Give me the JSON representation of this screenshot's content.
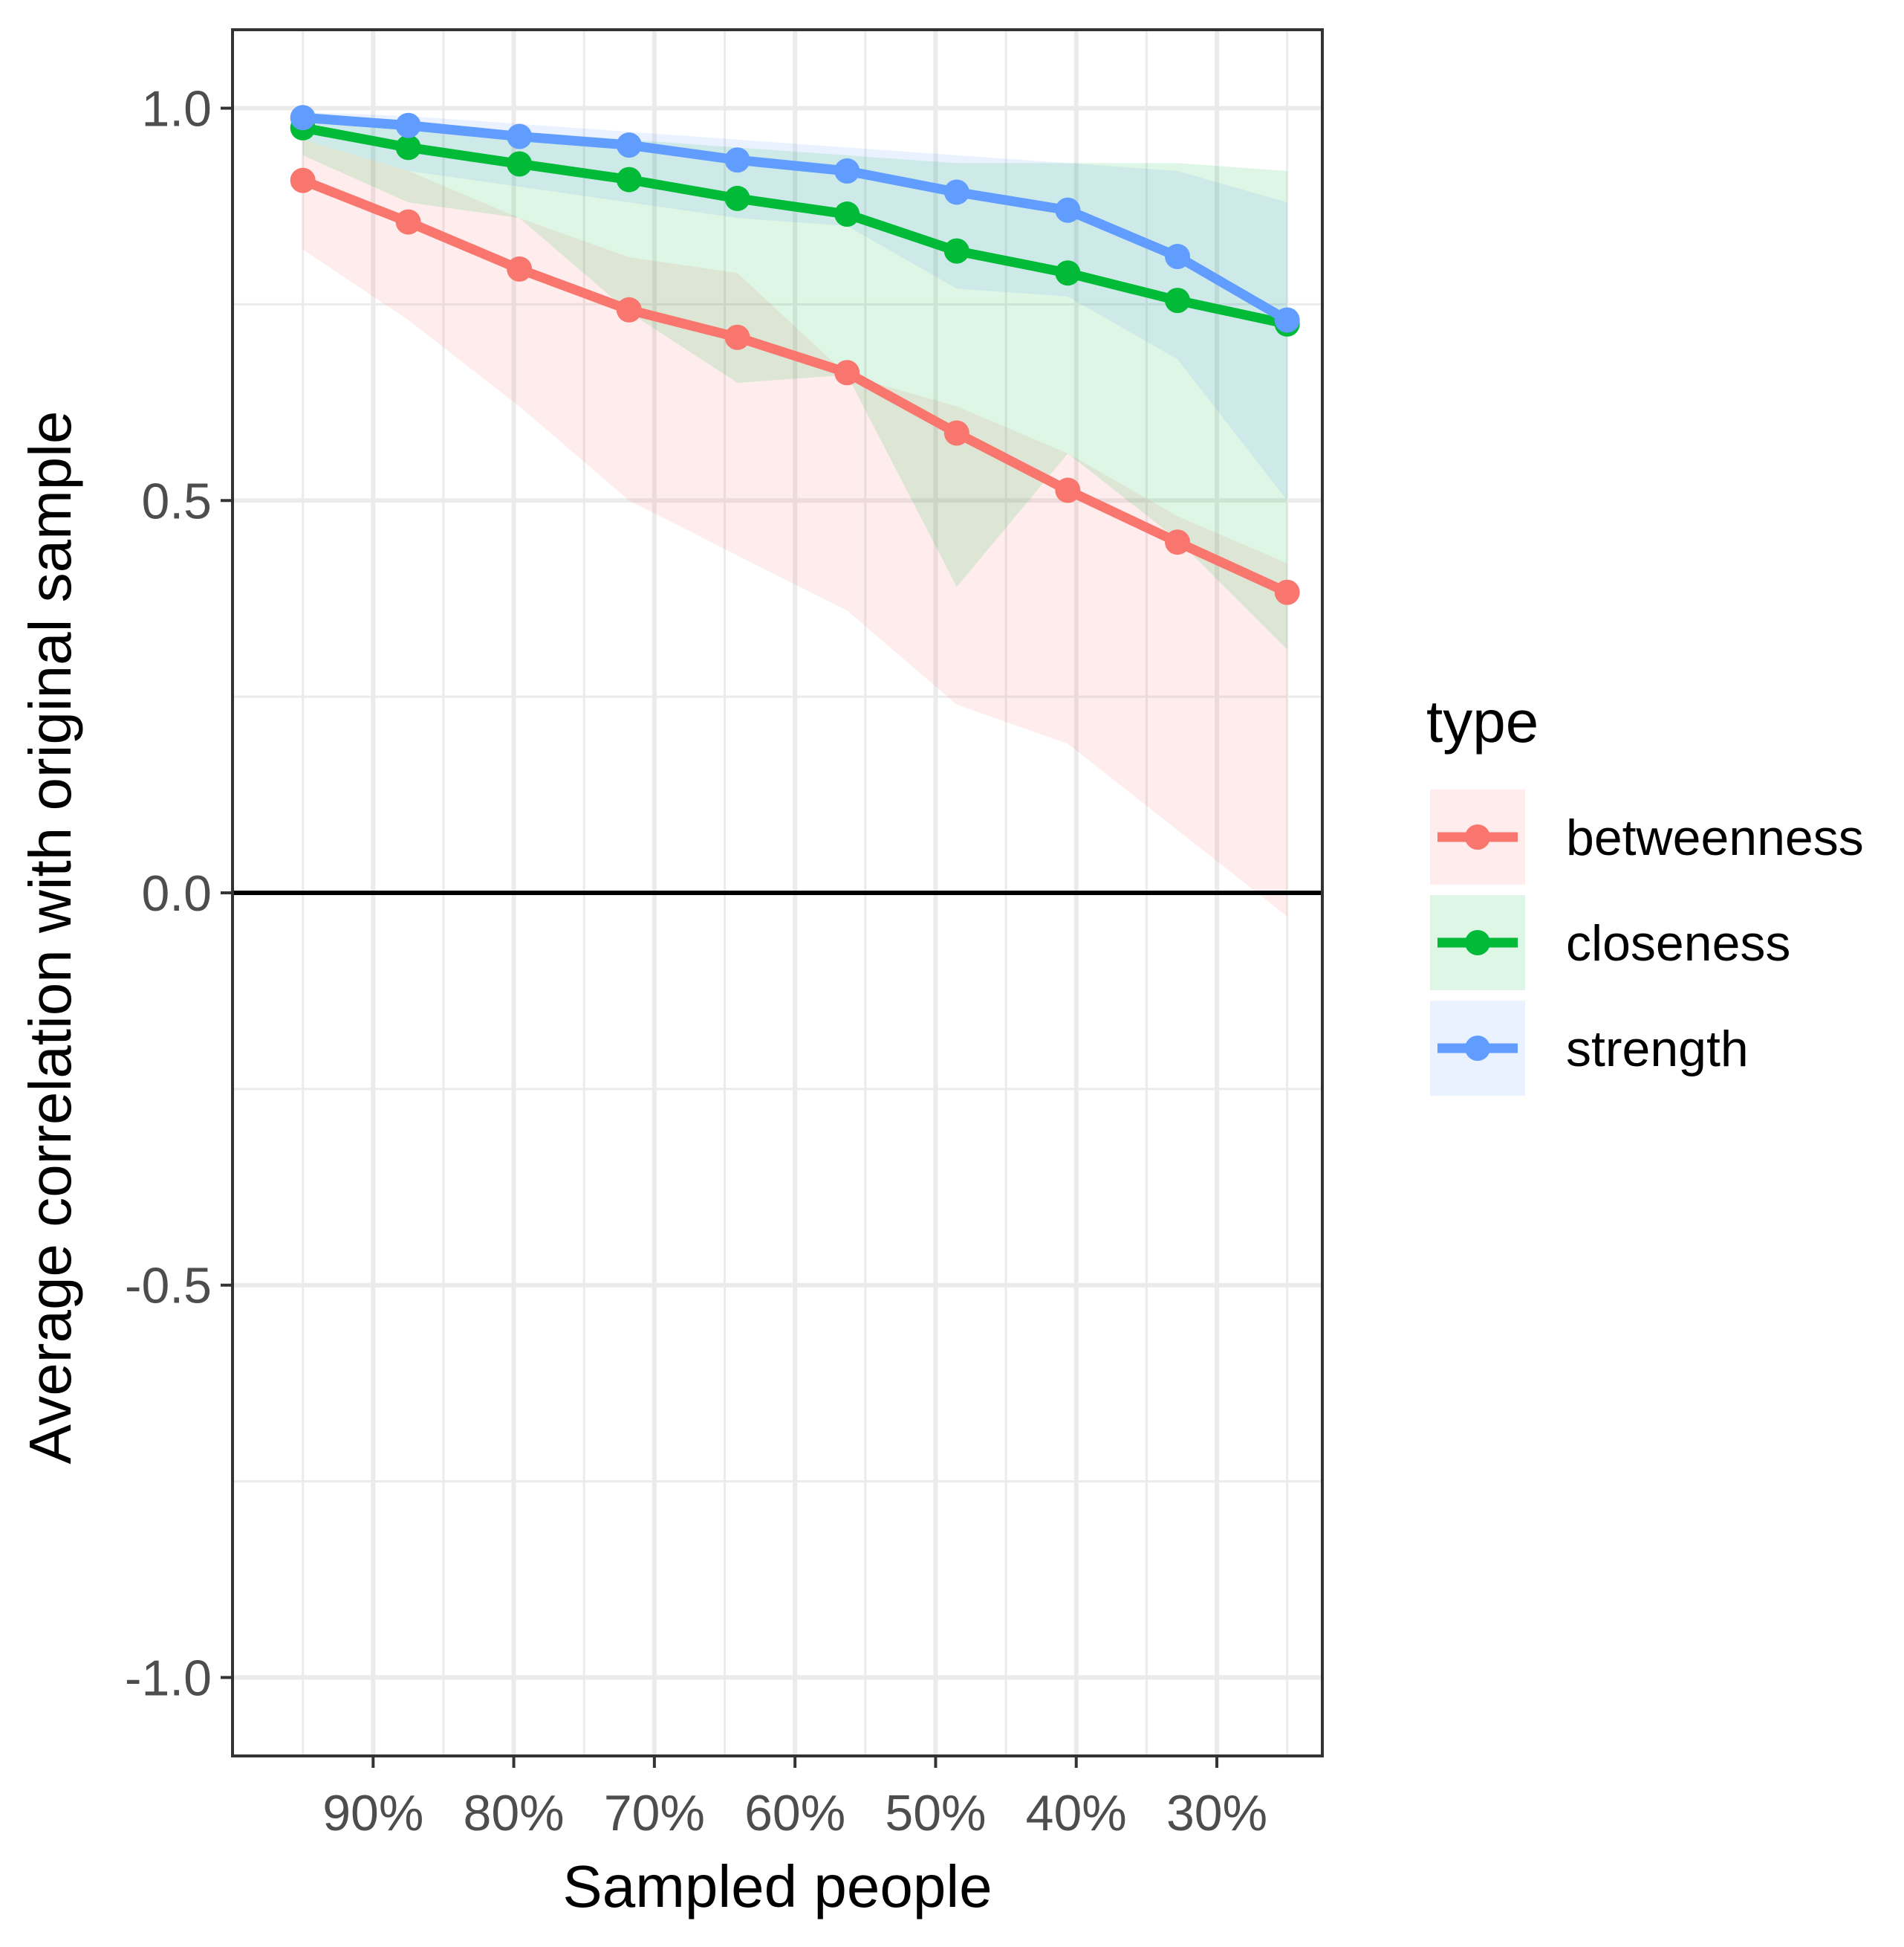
{
  "chart_data": {
    "type": "line",
    "title": "",
    "xlabel": "Sampled people",
    "ylabel": "Average correlation with original sample",
    "ylim": [
      -1.1,
      1.1
    ],
    "yticks": [
      -1.0,
      -0.5,
      0.0,
      0.5,
      1.0
    ],
    "ytick_labels": [
      "-1.0",
      "-0.5",
      "0.0",
      "0.5",
      "1.0"
    ],
    "xlim": [
      0.225,
      1.0
    ],
    "x": [
      0.95,
      0.875,
      0.796,
      0.718,
      0.641,
      0.563,
      0.485,
      0.406,
      0.328,
      0.25
    ],
    "xticks": [
      0.9,
      0.8,
      0.7,
      0.6,
      0.5,
      0.4,
      0.3
    ],
    "xtick_labels": [
      "90%",
      "80%",
      "70%",
      "60%",
      "50%",
      "40%",
      "30%"
    ],
    "reference_line_y": 0.0,
    "grid": true,
    "legend": {
      "title": "type",
      "position": "right"
    },
    "series": [
      {
        "name": "betweenness",
        "color": "#F8766D",
        "fill": "#FDECEA",
        "values": [
          0.908,
          0.855,
          0.795,
          0.743,
          0.708,
          0.663,
          0.586,
          0.513,
          0.447,
          0.383
        ],
        "lower": [
          0.82,
          0.73,
          0.62,
          0.5,
          0.43,
          0.36,
          0.24,
          0.19,
          0.08,
          -0.03
        ],
        "upper": [
          0.96,
          0.92,
          0.86,
          0.81,
          0.79,
          0.66,
          0.62,
          0.56,
          0.48,
          0.42
        ]
      },
      {
        "name": "closeness",
        "color": "#00BA38",
        "fill": "#E5F3DC",
        "values": [
          0.975,
          0.95,
          0.929,
          0.909,
          0.885,
          0.865,
          0.818,
          0.79,
          0.755,
          0.725
        ],
        "lower": [
          0.94,
          0.88,
          0.86,
          0.74,
          0.65,
          0.66,
          0.39,
          0.56,
          0.45,
          0.31
        ],
        "upper": [
          0.99,
          0.98,
          0.97,
          0.96,
          0.95,
          0.94,
          0.93,
          0.93,
          0.93,
          0.92
        ]
      },
      {
        "name": "strength",
        "color": "#619CFF",
        "fill": "#D9EDF2",
        "values": [
          0.988,
          0.978,
          0.964,
          0.953,
          0.934,
          0.92,
          0.893,
          0.87,
          0.811,
          0.73
        ],
        "lower": [
          0.96,
          0.92,
          0.9,
          0.88,
          0.86,
          0.85,
          0.77,
          0.76,
          0.68,
          0.5
        ],
        "upper": [
          0.995,
          0.99,
          0.98,
          0.97,
          0.96,
          0.95,
          0.94,
          0.93,
          0.92,
          0.88
        ]
      }
    ]
  }
}
